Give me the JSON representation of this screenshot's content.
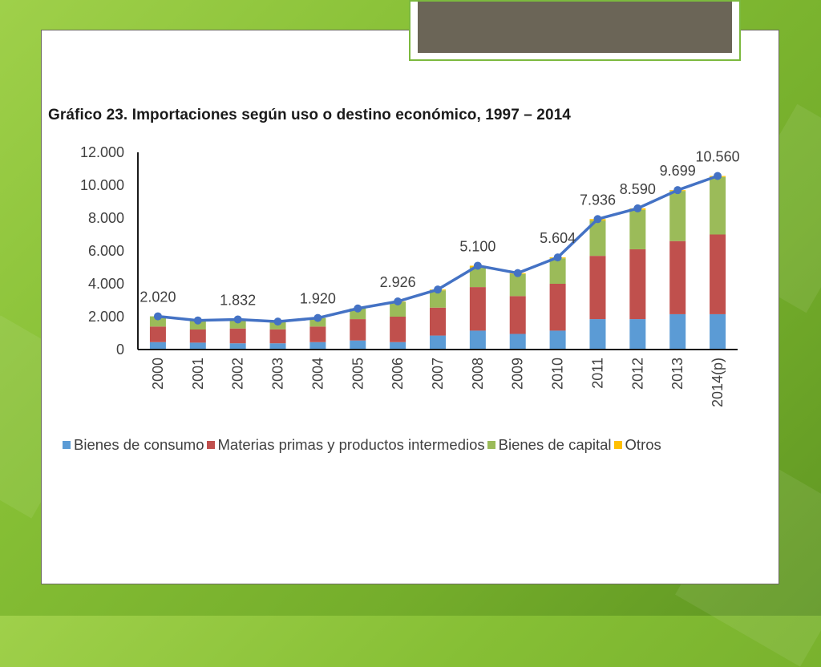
{
  "slide": {
    "title_box_color": "#6b6557"
  },
  "chart_data": {
    "type": "bar",
    "stacked": true,
    "title": "Gráfico 23. Importaciones según uso o destino económico, 1997 – 2014",
    "categories": [
      "2000",
      "2001",
      "2002",
      "2003",
      "2004",
      "2005",
      "2006",
      "2007",
      "2008",
      "2009",
      "2010",
      "2011",
      "2012",
      "2013",
      "2014(p)"
    ],
    "ylim": [
      0,
      12000
    ],
    "yticks": [
      {
        "value": 0,
        "label": "0"
      },
      {
        "value": 2000,
        "label": "2.000"
      },
      {
        "value": 4000,
        "label": "4.000"
      },
      {
        "value": 6000,
        "label": "6.000"
      },
      {
        "value": 8000,
        "label": "8.000"
      },
      {
        "value": 10000,
        "label": "10.000"
      },
      {
        "value": 12000,
        "label": "12.000"
      }
    ],
    "series": [
      {
        "name": "Bienes de consumo",
        "color": "#5b9bd5",
        "values": [
          450,
          420,
          380,
          380,
          450,
          550,
          450,
          850,
          1150,
          950,
          1150,
          1850,
          1850,
          2150,
          2150
        ]
      },
      {
        "name": "Materias primas y productos intermedios",
        "color": "#c0504d",
        "values": [
          950,
          800,
          900,
          850,
          950,
          1300,
          1550,
          1700,
          2650,
          2300,
          2850,
          3850,
          4250,
          4450,
          4850
        ]
      },
      {
        "name": "Bienes de capital",
        "color": "#9bbb59",
        "values": [
          620,
          550,
          550,
          470,
          520,
          650,
          900,
          1050,
          1200,
          1350,
          1550,
          2150,
          2400,
          3050,
          3500
        ]
      },
      {
        "name": "Otros",
        "color": "#ffc000",
        "values": [
          0,
          0,
          0,
          0,
          0,
          0,
          20,
          50,
          100,
          50,
          54,
          86,
          90,
          49,
          60
        ]
      }
    ],
    "total_line": {
      "color": "#4472c4",
      "values": [
        2020,
        1770,
        1832,
        1700,
        1920,
        2500,
        2926,
        3650,
        5100,
        4650,
        5604,
        7936,
        8590,
        9699,
        10560
      ]
    },
    "data_labels": [
      {
        "index": 0,
        "text": "2.020"
      },
      {
        "index": 2,
        "text": "1.832"
      },
      {
        "index": 4,
        "text": "1.920"
      },
      {
        "index": 6,
        "text": "2.926"
      },
      {
        "index": 8,
        "text": "5.100"
      },
      {
        "index": 10,
        "text": "5.604"
      },
      {
        "index": 11,
        "text": "7.936"
      },
      {
        "index": 12,
        "text": "8.590"
      },
      {
        "index": 13,
        "text": "9.699"
      },
      {
        "index": 14,
        "text": "10.560"
      }
    ],
    "legend": "bottom"
  }
}
